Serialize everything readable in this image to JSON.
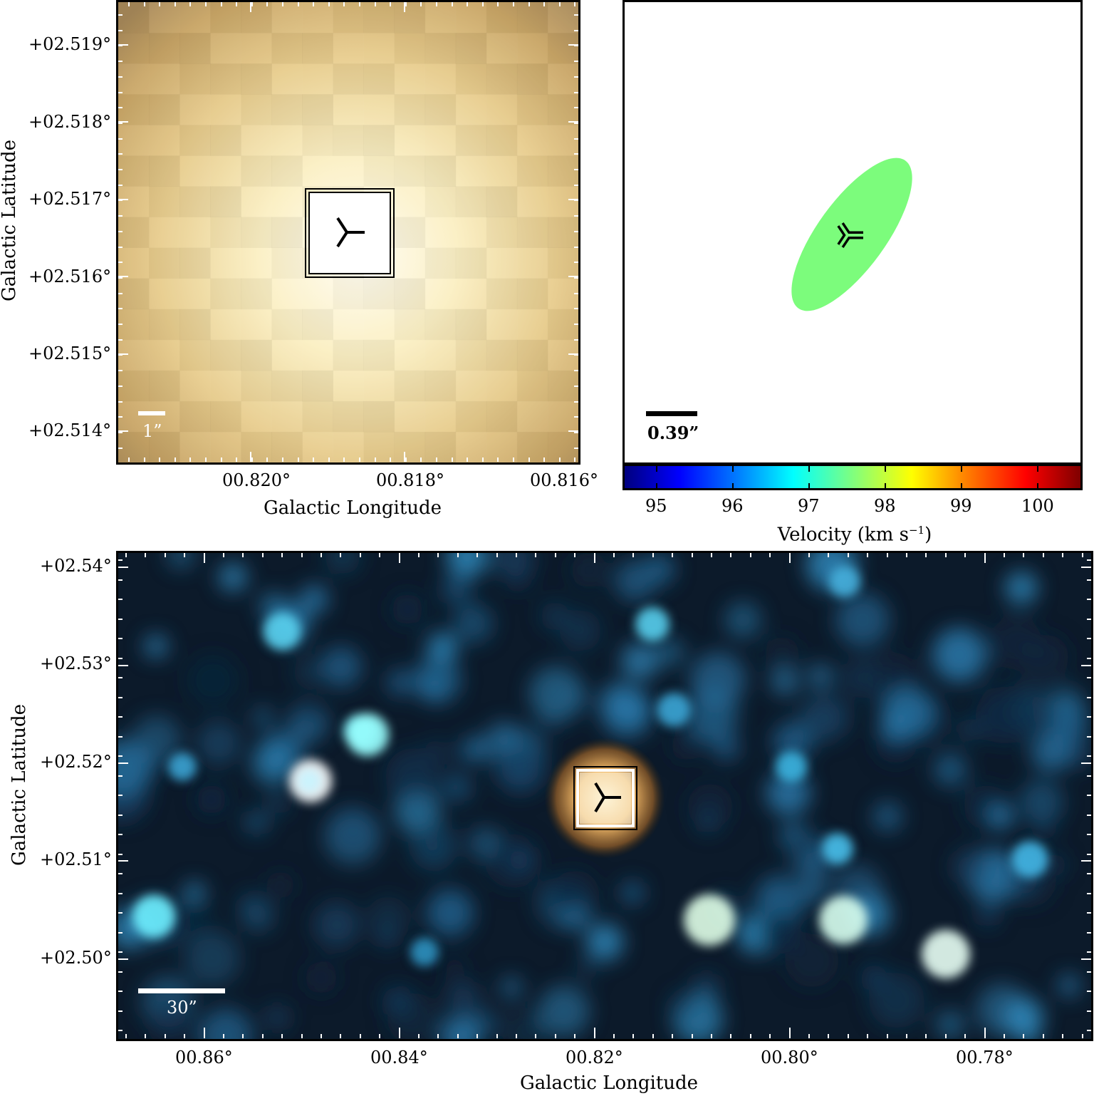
{
  "panel_top_left": {
    "ylabel": "Galactic Latitude",
    "xlabel": "Galactic Longitude",
    "yticks": [
      "+02.519°",
      "+02.518°",
      "+02.517°",
      "+02.516°",
      "+02.515°",
      "+02.514°"
    ],
    "xticks": [
      "00.820°",
      "00.818°",
      "00.816°"
    ],
    "scale_label": "1”"
  },
  "panel_top_right": {
    "scale_label": "0.39”",
    "colorbar_label": "Velocity (km s",
    "colorbar_label_sup": "−1",
    "colorbar_label_end": ")",
    "colorbar_ticks": [
      "95",
      "96",
      "97",
      "98",
      "99",
      "100"
    ],
    "ellipse_color": "#7cfc7c"
  },
  "panel_bottom": {
    "ylabel": "Galactic Latitude",
    "xlabel": "Galactic Longitude",
    "yticks": [
      "+02.54°",
      "+02.53°",
      "+02.52°",
      "+02.51°",
      "+02.50°"
    ],
    "xticks": [
      "00.86°",
      "00.84°",
      "00.82°",
      "00.80°",
      "00.78°"
    ],
    "scale_label": "30”"
  },
  "colors": {
    "colormap": [
      "#00007f",
      "#0000ff",
      "#007fff",
      "#00ffff",
      "#7fff7f",
      "#ffff00",
      "#ff7f00",
      "#ff0000",
      "#7f0000"
    ]
  }
}
